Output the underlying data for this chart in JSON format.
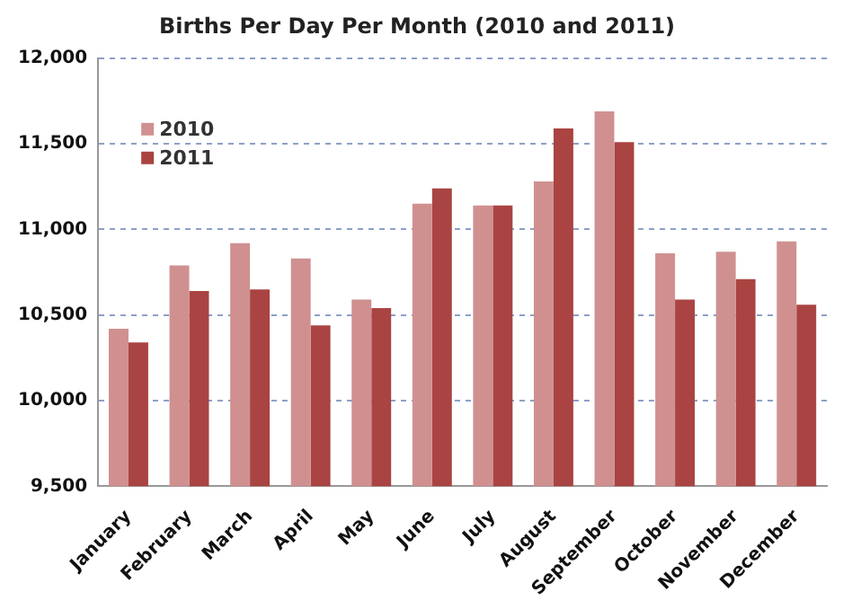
{
  "chart_data": {
    "type": "bar",
    "title": "Births Per Day Per Month (2010 and 2011)",
    "categories": [
      "January",
      "February",
      "March",
      "April",
      "May",
      "June",
      "July",
      "August",
      "September",
      "October",
      "November",
      "December"
    ],
    "series": [
      {
        "name": "2010",
        "color": "#d09090",
        "values": [
          10420,
          10790,
          10920,
          10830,
          10590,
          11150,
          11140,
          11280,
          11690,
          10860,
          10870,
          10930
        ]
      },
      {
        "name": "2011",
        "color": "#a94442",
        "values": [
          10340,
          10640,
          10650,
          10440,
          10540,
          11240,
          11140,
          11590,
          11510,
          10590,
          10710,
          10560
        ]
      }
    ],
    "ylim": [
      9500,
      12000
    ],
    "yticks": [
      {
        "value": 9500,
        "label": "9,500"
      },
      {
        "value": 10000,
        "label": "10,000"
      },
      {
        "value": 10500,
        "label": "10,500"
      },
      {
        "value": 11000,
        "label": "11,000"
      },
      {
        "value": 11500,
        "label": "11,500"
      },
      {
        "value": 12000,
        "label": "12,000"
      }
    ],
    "grid": "y",
    "legend": "top left"
  }
}
